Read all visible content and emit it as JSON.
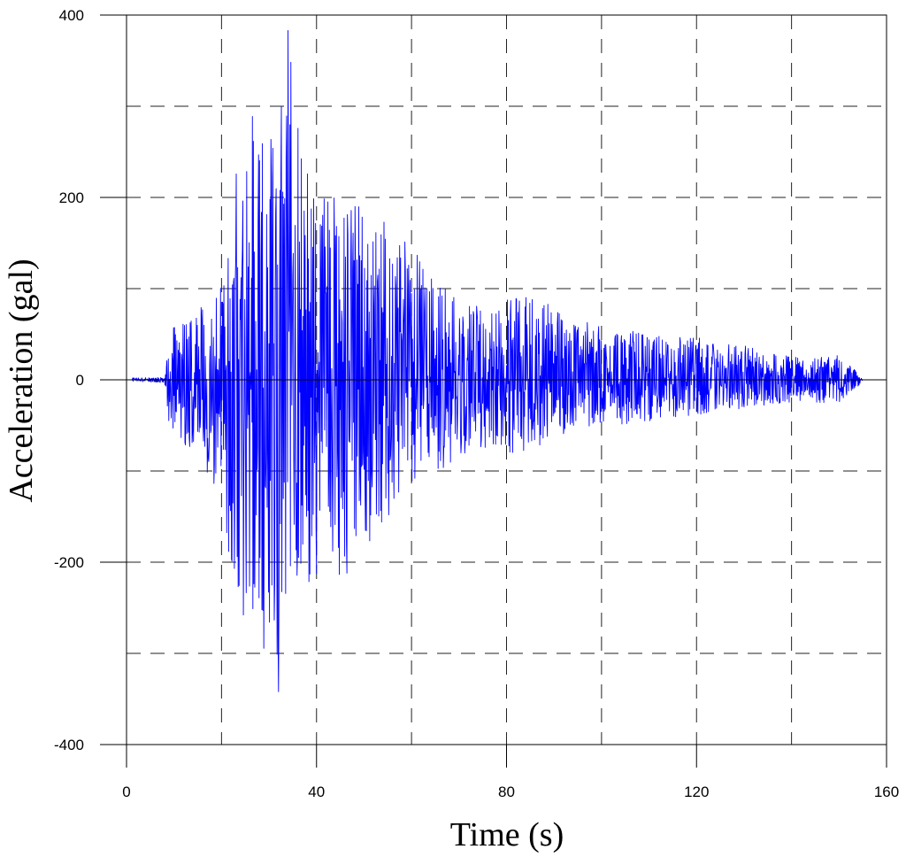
{
  "chart_data": {
    "type": "line",
    "title": "",
    "xlabel": "Time (s)",
    "ylabel": "Acceleration (gal)",
    "xlim": [
      0,
      160
    ],
    "ylim": [
      -400,
      400
    ],
    "xticks": [
      0,
      40,
      80,
      120,
      160
    ],
    "yticks": [
      -400,
      -200,
      0,
      200,
      400
    ],
    "x_gridlines": [
      20,
      40,
      60,
      80,
      100,
      120,
      140
    ],
    "y_gridlines": [
      -300,
      -200,
      -100,
      100,
      200,
      300
    ],
    "grid": true,
    "grid_style": "dashed",
    "line_color": "#0000ff",
    "series": [
      {
        "sample_interval_s": 0.1,
        "duration_s": 155,
        "peak_positive": {
          "t": 34.0,
          "value": 383
        },
        "peak_negative": {
          "t": 32.0,
          "value": -342
        },
        "envelope": [
          {
            "t": 0,
            "pos": 2,
            "neg": -2
          },
          {
            "t": 8,
            "pos": 3,
            "neg": -3
          },
          {
            "t": 9,
            "pos": 55,
            "neg": -55
          },
          {
            "t": 15,
            "pos": 75,
            "neg": -85
          },
          {
            "t": 20,
            "pos": 110,
            "neg": -130
          },
          {
            "t": 23,
            "pos": 230,
            "neg": -260
          },
          {
            "t": 25,
            "pos": 300,
            "neg": -280
          },
          {
            "t": 28,
            "pos": 290,
            "neg": -280
          },
          {
            "t": 31,
            "pos": 260,
            "neg": -330
          },
          {
            "t": 34,
            "pos": 380,
            "neg": -260
          },
          {
            "t": 38,
            "pos": 240,
            "neg": -240
          },
          {
            "t": 45,
            "pos": 200,
            "neg": -230
          },
          {
            "t": 52,
            "pos": 190,
            "neg": -180
          },
          {
            "t": 60,
            "pos": 150,
            "neg": -120
          },
          {
            "t": 65,
            "pos": 110,
            "neg": -100
          },
          {
            "t": 75,
            "pos": 85,
            "neg": -80
          },
          {
            "t": 85,
            "pos": 95,
            "neg": -80
          },
          {
            "t": 95,
            "pos": 65,
            "neg": -55
          },
          {
            "t": 110,
            "pos": 50,
            "neg": -45
          },
          {
            "t": 125,
            "pos": 45,
            "neg": -35
          },
          {
            "t": 140,
            "pos": 25,
            "neg": -25
          },
          {
            "t": 150,
            "pos": 28,
            "neg": -25
          },
          {
            "t": 155,
            "pos": 3,
            "neg": -3
          }
        ]
      }
    ]
  }
}
